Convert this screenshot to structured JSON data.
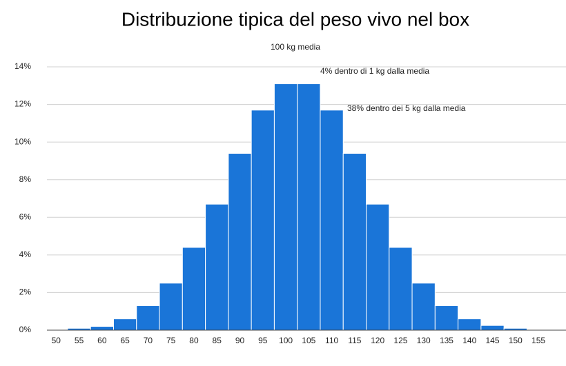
{
  "chart_data": {
    "type": "histogram",
    "title": "Distribuzione tipica del peso vivo nel box",
    "subtitle": "100 kg media",
    "annotations": [
      "4% dentro di 1 kg dalla media",
      "38% dentro dei 5 kg dalla media"
    ],
    "bins": [
      52.5,
      57.5,
      62.5,
      67.5,
      72.5,
      77.5,
      82.5,
      87.5,
      92.5,
      97.5,
      102.5,
      107.5,
      112.5,
      117.5,
      122.5,
      127.5,
      132.5,
      137.5,
      142.5,
      147.5,
      152.5
    ],
    "values": [
      0.1,
      0.2,
      0.6,
      1.3,
      2.5,
      4.4,
      6.7,
      9.4,
      11.7,
      13.1,
      13.1,
      11.7,
      9.4,
      6.7,
      4.4,
      2.5,
      1.3,
      0.6,
      0.25,
      0.1
    ],
    "color": "#1a75d8",
    "xlim": [
      48,
      161
    ],
    "xticks": [
      50,
      55,
      60,
      65,
      70,
      75,
      80,
      85,
      90,
      95,
      100,
      105,
      110,
      115,
      120,
      125,
      130,
      135,
      140,
      145,
      150,
      155
    ],
    "ylim": [
      0,
      14
    ],
    "yticks": [
      {
        "value": 0,
        "label": "0%"
      },
      {
        "value": 2,
        "label": "2%"
      },
      {
        "value": 4,
        "label": "4%"
      },
      {
        "value": 6,
        "label": "6%"
      },
      {
        "value": 8,
        "label": "8%"
      },
      {
        "value": 10,
        "label": "10%"
      },
      {
        "value": 12,
        "label": "12%"
      },
      {
        "value": 14,
        "label": "14%"
      }
    ],
    "grid": true
  }
}
